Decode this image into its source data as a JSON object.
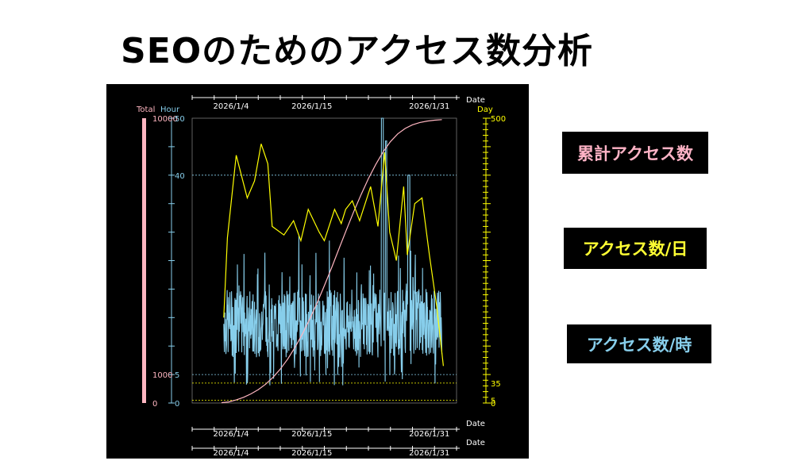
{
  "page": {
    "title": "SEOのためのアクセス数分析"
  },
  "legend": {
    "total_label": "累計アクセス数",
    "day_label": "アクセス数/日",
    "hour_label": "アクセス数/時"
  },
  "colors": {
    "total": "#ffb6c1",
    "day": "#ffff00",
    "hour": "#87ceeb",
    "background": "#000000",
    "axis_text": "#ffffff"
  },
  "chart_data": {
    "type": "line",
    "axes": {
      "total": {
        "label": "Total",
        "ylim": [
          0,
          10000
        ],
        "ticks": [
          "10000",
          "1000",
          "0"
        ]
      },
      "hour": {
        "label": "Hour",
        "ylim": [
          0,
          50
        ],
        "ticks": [
          "50",
          "40",
          "5",
          "0"
        ]
      },
      "day": {
        "label": "Day",
        "ylim": [
          0,
          500
        ],
        "ticks": [
          "500",
          "35",
          "5",
          "0"
        ]
      },
      "x": {
        "label": "Date",
        "ticks": [
          "2026/1/4",
          "2026/1/15",
          "2026/1/31"
        ],
        "tick_days": [
          4,
          15,
          31
        ],
        "range_days": [
          0,
          36
        ]
      }
    },
    "reference_lines": [
      {
        "axis": "hour",
        "value": 40,
        "label": "40"
      },
      {
        "axis": "hour",
        "value": 5,
        "label": "5"
      },
      {
        "axis": "day",
        "value": 35,
        "label": "35"
      },
      {
        "axis": "day",
        "value": 5,
        "label": "5"
      }
    ],
    "series": [
      {
        "name": "累計アクセス数",
        "axis": "total",
        "color": "#ffb6c1",
        "x": [
          4,
          5,
          6,
          7,
          8,
          9,
          10,
          11,
          12,
          13,
          14,
          15,
          16,
          17,
          18,
          19,
          20,
          21,
          22,
          23,
          24,
          25,
          26,
          27,
          28,
          29,
          30,
          31,
          32,
          33,
          34
        ],
        "values": [
          10,
          40,
          110,
          200,
          320,
          470,
          660,
          900,
          1190,
          1540,
          1950,
          2420,
          2940,
          3510,
          4120,
          4760,
          5420,
          6080,
          6720,
          7320,
          7880,
          8380,
          8820,
          9180,
          9450,
          9640,
          9770,
          9850,
          9900,
          9930,
          9950
        ]
      },
      {
        "name": "アクセス数/日",
        "axis": "day",
        "color": "#ffff00",
        "x": [
          4.3,
          4.8,
          6,
          7.5,
          8.5,
          9.4,
          10.3,
          10.9,
          12.5,
          13.8,
          14.8,
          15.8,
          17.3,
          18,
          19.4,
          20.3,
          20.9,
          21.8,
          22.8,
          24.3,
          25.3,
          26.2,
          26.9,
          27.8,
          28.8,
          29.3,
          30.3,
          31.3,
          32.3,
          33.3,
          34.2
        ],
        "values": [
          150,
          290,
          435,
          360,
          390,
          455,
          420,
          310,
          295,
          320,
          285,
          340,
          300,
          285,
          340,
          315,
          340,
          355,
          320,
          380,
          310,
          440,
          300,
          250,
          380,
          260,
          350,
          360,
          260,
          170,
          65
        ]
      },
      {
        "name": "アクセス数/時",
        "axis": "hour",
        "color": "#87ceeb",
        "x_start": 4.3,
        "x_end": 34,
        "typical_range": [
          8,
          20
        ],
        "peak": {
          "x": 25.9,
          "value": 50
        }
      }
    ]
  }
}
